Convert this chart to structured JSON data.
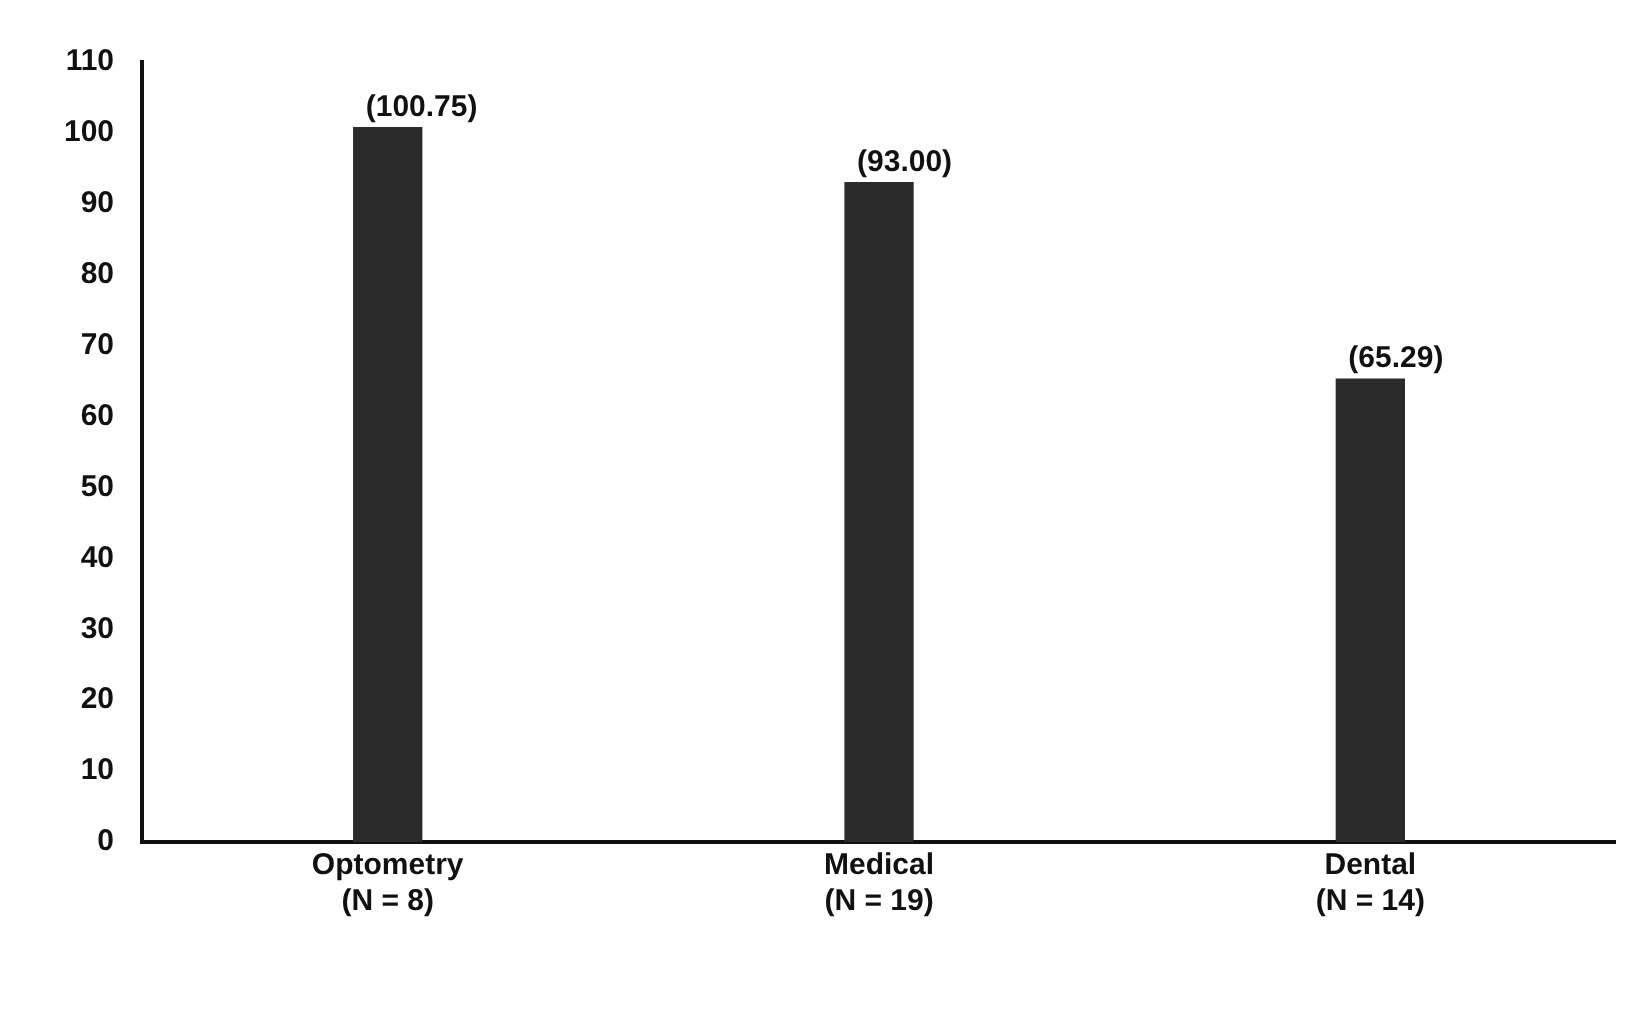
{
  "chart_data": {
    "type": "bar",
    "categories": [
      "Optometry\n(N = 8)",
      "Medical\n(N = 19)",
      "Dental\n(N = 14)"
    ],
    "values": [
      100.75,
      93.0,
      65.29
    ],
    "color": "#2b2b2b",
    "value_labels": [
      "(100.75)",
      "(93.00)",
      "(65.29)"
    ],
    "ylim": [
      0,
      110
    ],
    "yticks": [
      0,
      10,
      20,
      30,
      40,
      50,
      60,
      70,
      80,
      90,
      100,
      110
    ],
    "grid": false,
    "legend": false
  }
}
